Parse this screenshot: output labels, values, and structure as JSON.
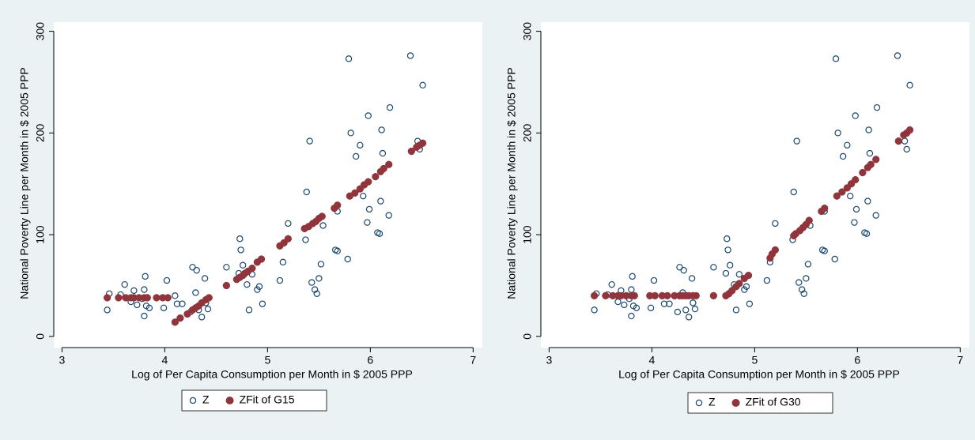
{
  "chart_data": [
    {
      "type": "scatter",
      "xlabel": "Log of Per Capita Consumption per Month in $ 2005 PPP",
      "ylabel": "National Poverty Line per Month in $ 2005 PPP",
      "xlim": [
        2.92,
        7.09
      ],
      "ylim": [
        -11,
        309
      ],
      "xticks": [
        3,
        4,
        5,
        6,
        7
      ],
      "yticks": [
        0,
        100,
        200,
        300
      ],
      "series": [
        {
          "name": "Z",
          "color": "#1a476f",
          "marker": "hollow",
          "x": [
            3.44,
            3.46,
            3.57,
            3.61,
            3.67,
            3.7,
            3.73,
            3.78,
            3.8,
            3.81,
            3.82,
            3.8,
            3.85,
            3.99,
            4.02,
            4.1,
            4.12,
            4.17,
            4.25,
            4.27,
            4.3,
            4.31,
            4.33,
            4.36,
            4.39,
            4.4,
            4.42,
            4.6,
            4.72,
            4.73,
            4.74,
            4.76,
            4.8,
            4.82,
            4.85,
            4.9,
            4.92,
            4.95,
            5.12,
            5.15,
            5.2,
            5.37,
            5.38,
            5.41,
            5.43,
            5.46,
            5.48,
            5.5,
            5.52,
            5.54,
            5.66,
            5.68,
            5.68,
            5.78,
            5.79,
            5.81,
            5.86,
            5.9,
            5.93,
            5.97,
            5.98,
            5.99,
            6.07,
            6.09,
            6.1,
            6.12,
            6.11,
            6.18,
            6.19,
            6.39,
            6.46,
            6.48,
            6.51
          ],
          "values": [
            26,
            42,
            41,
            51,
            34,
            45,
            31,
            37,
            20,
            59,
            30,
            46,
            28,
            28,
            55,
            40,
            32,
            32,
            24,
            68,
            43,
            65,
            26,
            19,
            57,
            33,
            27,
            68,
            62,
            96,
            85,
            70,
            51,
            26,
            61,
            46,
            49,
            32,
            55,
            73,
            111,
            95,
            142,
            192,
            53,
            46,
            42,
            57,
            71,
            109,
            85,
            84,
            123,
            76,
            273,
            200,
            177,
            188,
            138,
            112,
            217,
            125,
            102,
            101,
            133,
            180,
            203,
            119,
            225,
            276,
            192,
            184,
            247
          ]
        },
        {
          "name": "ZFit of G15",
          "color": "#90353b",
          "marker": "filled",
          "x": [
            3.44,
            3.55,
            3.62,
            3.67,
            3.7,
            3.75,
            3.8,
            3.83,
            3.92,
            3.98,
            4.03,
            4.1,
            4.15,
            4.22,
            4.27,
            4.3,
            4.33,
            4.36,
            4.4,
            4.43,
            4.6,
            4.7,
            4.73,
            4.76,
            4.78,
            4.81,
            4.85,
            4.9,
            4.94,
            5.12,
            5.16,
            5.2,
            5.36,
            5.4,
            5.44,
            5.47,
            5.5,
            5.53,
            5.65,
            5.68,
            5.8,
            5.85,
            5.9,
            5.94,
            5.98,
            6.05,
            6.1,
            6.13,
            6.18,
            6.4,
            6.45,
            6.48,
            6.51
          ],
          "values": [
            38,
            38,
            38,
            38,
            38,
            38,
            38,
            38,
            38,
            38,
            38,
            14,
            18,
            22,
            26,
            28,
            30,
            33,
            36,
            38,
            50,
            56,
            58,
            60,
            62,
            64,
            67,
            73,
            76,
            89,
            92,
            96,
            106,
            108,
            111,
            113,
            116,
            118,
            126,
            129,
            138,
            141,
            145,
            149,
            152,
            157,
            162,
            165,
            169,
            182,
            186,
            188,
            190
          ]
        }
      ]
    },
    {
      "type": "scatter",
      "xlabel": "Log of Per Capita Consumption per Month in $ 2005 PPP",
      "ylabel": "National Poverty Line per Month in $ 2005 PPP",
      "xlim": [
        2.92,
        7.09
      ],
      "ylim": [
        -11,
        309
      ],
      "xticks": [
        3,
        4,
        5,
        6,
        7
      ],
      "yticks": [
        0,
        100,
        200,
        300
      ],
      "series": [
        {
          "name": "Z",
          "color": "#1a476f",
          "marker": "hollow",
          "x": [
            3.44,
            3.46,
            3.57,
            3.61,
            3.67,
            3.7,
            3.73,
            3.78,
            3.8,
            3.81,
            3.82,
            3.8,
            3.85,
            3.99,
            4.02,
            4.1,
            4.12,
            4.17,
            4.25,
            4.27,
            4.3,
            4.31,
            4.33,
            4.36,
            4.39,
            4.4,
            4.42,
            4.6,
            4.72,
            4.73,
            4.74,
            4.76,
            4.8,
            4.82,
            4.85,
            4.9,
            4.92,
            4.95,
            5.12,
            5.15,
            5.2,
            5.37,
            5.38,
            5.41,
            5.43,
            5.46,
            5.48,
            5.5,
            5.52,
            5.54,
            5.66,
            5.68,
            5.68,
            5.78,
            5.79,
            5.81,
            5.86,
            5.9,
            5.93,
            5.97,
            5.98,
            5.99,
            6.07,
            6.09,
            6.1,
            6.12,
            6.11,
            6.18,
            6.19,
            6.39,
            6.46,
            6.48,
            6.51
          ],
          "values": [
            26,
            42,
            41,
            51,
            34,
            45,
            31,
            37,
            20,
            59,
            30,
            46,
            28,
            28,
            55,
            40,
            32,
            32,
            24,
            68,
            43,
            65,
            26,
            19,
            57,
            33,
            27,
            68,
            62,
            96,
            85,
            70,
            51,
            26,
            61,
            46,
            49,
            32,
            55,
            73,
            111,
            95,
            142,
            192,
            53,
            46,
            42,
            57,
            71,
            109,
            85,
            84,
            123,
            76,
            273,
            200,
            177,
            188,
            138,
            112,
            217,
            125,
            102,
            101,
            133,
            180,
            203,
            119,
            225,
            276,
            192,
            184,
            247
          ]
        },
        {
          "name": "ZFit of G30",
          "color": "#90353b",
          "marker": "filled",
          "x": [
            3.44,
            3.55,
            3.62,
            3.67,
            3.7,
            3.75,
            3.8,
            3.83,
            3.98,
            4.03,
            4.1,
            4.15,
            4.22,
            4.27,
            4.3,
            4.33,
            4.36,
            4.4,
            4.43,
            4.6,
            4.72,
            4.75,
            4.78,
            4.82,
            4.85,
            4.9,
            4.94,
            5.15,
            5.17,
            5.2,
            5.38,
            5.4,
            5.44,
            5.47,
            5.5,
            5.53,
            5.65,
            5.68,
            5.8,
            5.85,
            5.9,
            5.94,
            5.98,
            6.05,
            6.1,
            6.13,
            6.18,
            6.4,
            6.45,
            6.48,
            6.51
          ],
          "values": [
            40,
            40,
            40,
            40,
            40,
            40,
            40,
            40,
            40,
            40,
            40,
            40,
            40,
            40,
            40,
            40,
            40,
            40,
            40,
            40,
            40,
            42,
            45,
            49,
            52,
            57,
            60,
            77,
            81,
            85,
            99,
            101,
            104,
            107,
            110,
            114,
            123,
            126,
            138,
            142,
            146,
            150,
            154,
            161,
            166,
            169,
            174,
            192,
            198,
            200,
            203
          ]
        }
      ]
    }
  ]
}
